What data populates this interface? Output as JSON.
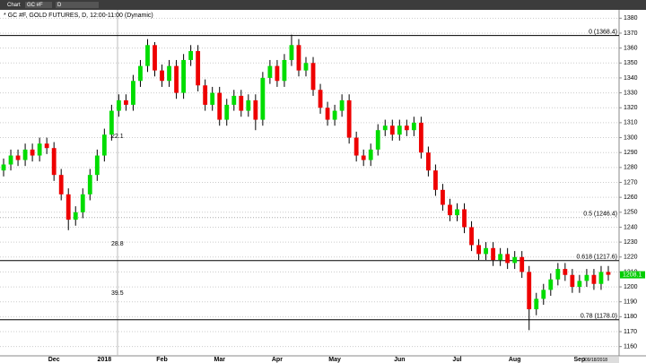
{
  "toolbar": {
    "app": "Chart",
    "symbol": "GC #F",
    "period": "D"
  },
  "chart_data": {
    "type": "candlestick",
    "title": "* GC #F, GOLD FUTURES, D, 12:00-11:00 (Dynamic)",
    "categories": [
      null,
      null,
      null,
      null,
      null,
      null,
      null,
      "Dec",
      null,
      null,
      null,
      null,
      null,
      null,
      "2018",
      null,
      null,
      null,
      null,
      null,
      null,
      null,
      "Feb",
      null,
      null,
      null,
      null,
      null,
      null,
      null,
      "Mar",
      null,
      null,
      null,
      null,
      null,
      null,
      null,
      "Apr",
      null,
      null,
      null,
      null,
      null,
      null,
      null,
      "May",
      null,
      null,
      null,
      null,
      null,
      null,
      null,
      null,
      "Jun",
      null,
      null,
      null,
      null,
      null,
      null,
      null,
      "Jul",
      null,
      null,
      null,
      null,
      null,
      null,
      null,
      "Aug",
      null,
      null,
      null,
      null,
      null,
      null,
      null,
      null,
      "Sep",
      null,
      null,
      null,
      null
    ],
    "open": [
      1278,
      1282,
      1288,
      1285,
      1292,
      1288,
      1296,
      1293,
      1275,
      1262,
      1245,
      1250,
      1262,
      1275,
      1288,
      1302,
      1318,
      1325,
      1322,
      1338,
      1348,
      1362,
      1345,
      1338,
      1348,
      1330,
      1352,
      1358,
      1335,
      1322,
      1330,
      1312,
      1322,
      1328,
      1318,
      1325,
      1312,
      1340,
      1348,
      1338,
      1352,
      1362,
      1345,
      1350,
      1332,
      1320,
      1312,
      1318,
      1325,
      1300,
      1288,
      1285,
      1292,
      1305,
      1308,
      1302,
      1308,
      1305,
      1310,
      1290,
      1278,
      1265,
      1255,
      1248,
      1252,
      1240,
      1228,
      1222,
      1226,
      1218,
      1222,
      1216,
      1220,
      1210,
      1185,
      1192,
      1198,
      1205,
      1212,
      1208,
      1200,
      1204,
      1208,
      1202,
      1210
    ],
    "high": [
      1286,
      1292,
      1292,
      1296,
      1296,
      1300,
      1300,
      1297,
      1279,
      1266,
      1254,
      1266,
      1279,
      1292,
      1306,
      1322,
      1329,
      1329,
      1342,
      1352,
      1366,
      1364,
      1349,
      1352,
      1352,
      1356,
      1362,
      1362,
      1339,
      1334,
      1334,
      1326,
      1332,
      1332,
      1329,
      1329,
      1344,
      1352,
      1352,
      1356,
      1369,
      1366,
      1354,
      1354,
      1336,
      1324,
      1322,
      1329,
      1329,
      1304,
      1292,
      1296,
      1309,
      1312,
      1312,
      1312,
      1312,
      1314,
      1314,
      1294,
      1282,
      1269,
      1259,
      1256,
      1256,
      1244,
      1232,
      1230,
      1230,
      1226,
      1226,
      1224,
      1224,
      1214,
      1196,
      1202,
      1209,
      1216,
      1216,
      1212,
      1208,
      1212,
      1212,
      1214,
      1214
    ],
    "low": [
      1274,
      1278,
      1281,
      1281,
      1284,
      1284,
      1289,
      1271,
      1258,
      1238,
      1241,
      1246,
      1258,
      1271,
      1284,
      1298,
      1314,
      1318,
      1318,
      1334,
      1344,
      1341,
      1334,
      1334,
      1326,
      1326,
      1348,
      1331,
      1318,
      1318,
      1308,
      1308,
      1318,
      1314,
      1314,
      1305,
      1308,
      1336,
      1334,
      1334,
      1348,
      1341,
      1341,
      1328,
      1316,
      1308,
      1308,
      1314,
      1296,
      1284,
      1281,
      1281,
      1288,
      1301,
      1298,
      1298,
      1301,
      1301,
      1286,
      1274,
      1261,
      1251,
      1244,
      1244,
      1236,
      1224,
      1218,
      1218,
      1214,
      1214,
      1212,
      1212,
      1206,
      1171,
      1181,
      1188,
      1194,
      1201,
      1204,
      1196,
      1196,
      1200,
      1198,
      1198,
      1204.1
    ],
    "close": [
      1282,
      1288,
      1285,
      1292,
      1288,
      1296,
      1293,
      1275,
      1262,
      1245,
      1250,
      1262,
      1275,
      1288,
      1302,
      1318,
      1325,
      1322,
      1338,
      1348,
      1362,
      1345,
      1338,
      1348,
      1330,
      1352,
      1358,
      1335,
      1322,
      1330,
      1312,
      1322,
      1328,
      1318,
      1325,
      1312,
      1340,
      1348,
      1338,
      1352,
      1362,
      1345,
      1350,
      1332,
      1320,
      1312,
      1318,
      1325,
      1300,
      1288,
      1285,
      1292,
      1305,
      1308,
      1302,
      1308,
      1305,
      1310,
      1290,
      1278,
      1265,
      1255,
      1248,
      1252,
      1240,
      1228,
      1222,
      1226,
      1218,
      1222,
      1216,
      1220,
      1210,
      1185,
      1192,
      1198,
      1205,
      1212,
      1208,
      1200,
      1204,
      1208,
      1202,
      1210,
      1208.1
    ],
    "up_color": "#00dd00",
    "down_color": "#ee0000",
    "ylim": [
      1155,
      1385
    ],
    "yticks": [
      1160,
      1170,
      1180,
      1190,
      1200,
      1210,
      1220,
      1230,
      1240,
      1250,
      1260,
      1270,
      1280,
      1290,
      1300,
      1310,
      1320,
      1330,
      1340,
      1350,
      1360,
      1370,
      1380
    ],
    "grid": true,
    "levels": [
      {
        "label": "0 (1368.4)",
        "value": 1368.4
      },
      {
        "label": "0.5 (1246.4)",
        "value": 1246.4
      },
      {
        "label": "0.618 (1217.6)",
        "value": 1217.6
      },
      {
        "label": "0.78 (1178.0)",
        "value": 1178.0
      }
    ],
    "time_labels": [
      "22.1",
      "28.8",
      "39.5"
    ],
    "last_price": 1208.1,
    "date_box": "09/18/2018"
  }
}
